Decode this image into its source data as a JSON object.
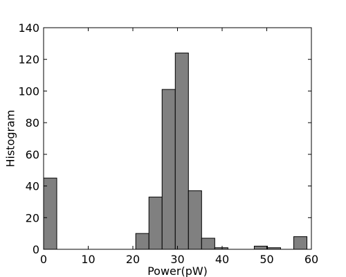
{
  "chart_data": {
    "type": "bar",
    "title": "",
    "xlabel": "Power(pW)",
    "ylabel": "Histogram",
    "xlim": [
      0,
      60
    ],
    "ylim": [
      0,
      140
    ],
    "x_ticks": [
      0,
      10,
      20,
      30,
      40,
      50,
      60
    ],
    "y_ticks": [
      0,
      20,
      40,
      60,
      80,
      100,
      120,
      140
    ],
    "grid": false,
    "bin_width": 2.95,
    "bins": [
      {
        "x0": 0.0,
        "x1": 2.95,
        "value": 45
      },
      {
        "x0": 2.95,
        "x1": 5.9,
        "value": 0
      },
      {
        "x0": 5.9,
        "x1": 8.85,
        "value": 0
      },
      {
        "x0": 8.85,
        "x1": 11.8,
        "value": 0
      },
      {
        "x0": 11.8,
        "x1": 14.75,
        "value": 0
      },
      {
        "x0": 14.75,
        "x1": 17.7,
        "value": 0
      },
      {
        "x0": 17.7,
        "x1": 20.65,
        "value": 0
      },
      {
        "x0": 20.65,
        "x1": 23.6,
        "value": 10
      },
      {
        "x0": 23.6,
        "x1": 26.55,
        "value": 33
      },
      {
        "x0": 26.55,
        "x1": 29.5,
        "value": 101
      },
      {
        "x0": 29.5,
        "x1": 32.45,
        "value": 124
      },
      {
        "x0": 32.45,
        "x1": 35.4,
        "value": 37
      },
      {
        "x0": 35.4,
        "x1": 38.35,
        "value": 7
      },
      {
        "x0": 38.35,
        "x1": 41.3,
        "value": 1
      },
      {
        "x0": 41.3,
        "x1": 44.25,
        "value": 0
      },
      {
        "x0": 44.25,
        "x1": 47.2,
        "value": 0
      },
      {
        "x0": 47.2,
        "x1": 50.15,
        "value": 2
      },
      {
        "x0": 50.15,
        "x1": 53.1,
        "value": 1
      },
      {
        "x0": 53.1,
        "x1": 56.05,
        "value": 0
      },
      {
        "x0": 56.05,
        "x1": 59.0,
        "value": 8
      }
    ],
    "colors": {
      "bar_fill": "#808080",
      "bar_stroke": "#000000",
      "axis": "#000000",
      "background": "#ffffff"
    }
  }
}
